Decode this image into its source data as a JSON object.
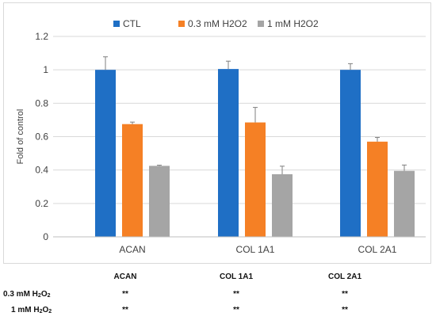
{
  "chart_data": {
    "type": "bar",
    "ylabel": "Fold of control",
    "ylim": [
      0,
      1.2
    ],
    "yticks": [
      "0",
      "0.2",
      "0.4",
      "0.6",
      "0.8",
      "1",
      "1.2"
    ],
    "ytick_values": [
      0,
      0.2,
      0.4,
      0.6,
      0.8,
      1.0,
      1.2
    ],
    "categories": [
      "ACAN",
      "COL 1A1",
      "COL 2A1"
    ],
    "legend_position": "top-center",
    "grid": "horizontal",
    "series": [
      {
        "name": "CTL",
        "color": "#1f6fc5",
        "values": [
          1.0,
          1.005,
          1.0
        ],
        "errors": [
          0.078,
          0.047,
          0.037
        ]
      },
      {
        "name": "0.3 mM H2O2",
        "color": "#f58025",
        "values": [
          0.675,
          0.685,
          0.57
        ],
        "errors": [
          0.012,
          0.09,
          0.025
        ]
      },
      {
        "name": "1 mM H2O2",
        "color": "#a5a5a5",
        "values": [
          0.425,
          0.375,
          0.395
        ],
        "errors": [
          0.004,
          0.048,
          0.035
        ]
      }
    ]
  },
  "significance_table": {
    "headers": [
      "ACAN",
      "COL 1A1",
      "COL 2A1"
    ],
    "rows": [
      {
        "label_prefix": "0.3 mM H",
        "label_sub1": "2",
        "label_mid": "O",
        "label_sub2": "2",
        "cells": [
          "**",
          "**",
          "**"
        ]
      },
      {
        "label_prefix": "1 mM H",
        "label_sub1": "2",
        "label_mid": "O",
        "label_sub2": "2",
        "cells": [
          "**",
          "**",
          "**"
        ]
      }
    ]
  }
}
